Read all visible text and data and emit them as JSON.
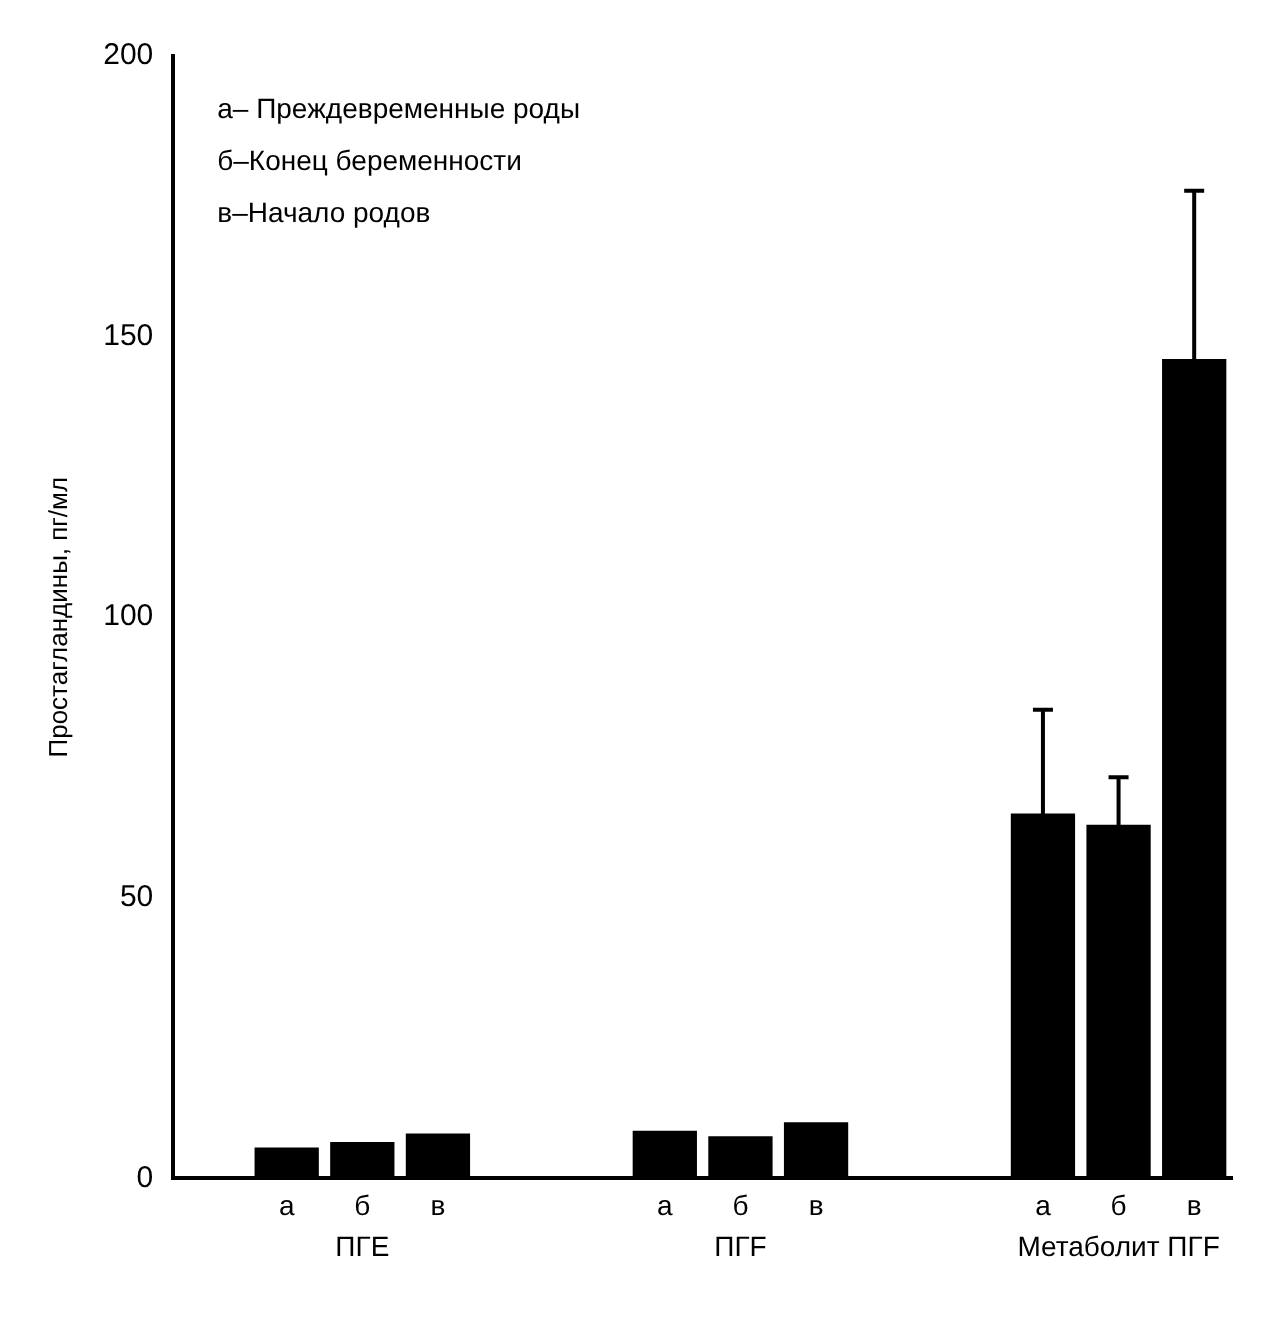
{
  "chart_data": {
    "type": "bar",
    "ylabel": "Простагландины, пг/мл",
    "categories": [
      null,
      "а",
      "б",
      "в",
      null,
      null,
      "а",
      "б",
      "в",
      null,
      null,
      "а",
      "б",
      "в"
    ],
    "values": [
      null,
      5.5,
      6.5,
      8,
      null,
      null,
      8.5,
      7.5,
      10,
      null,
      null,
      65,
      63,
      146
    ],
    "errors": [
      null,
      null,
      null,
      null,
      null,
      null,
      null,
      null,
      null,
      null,
      null,
      18.5,
      8.5,
      30
    ],
    "color": "#000000",
    "ylim": [
      0,
      200
    ],
    "yticks": [
      0,
      50,
      100,
      150,
      200
    ],
    "grid": false,
    "legend": false,
    "annotations": [
      "а– Преждевременные роды",
      "б–Конец беременности",
      "в–Начало родов",
      "ПГЕ",
      "ПГF",
      "Метаболит ПГF"
    ]
  }
}
